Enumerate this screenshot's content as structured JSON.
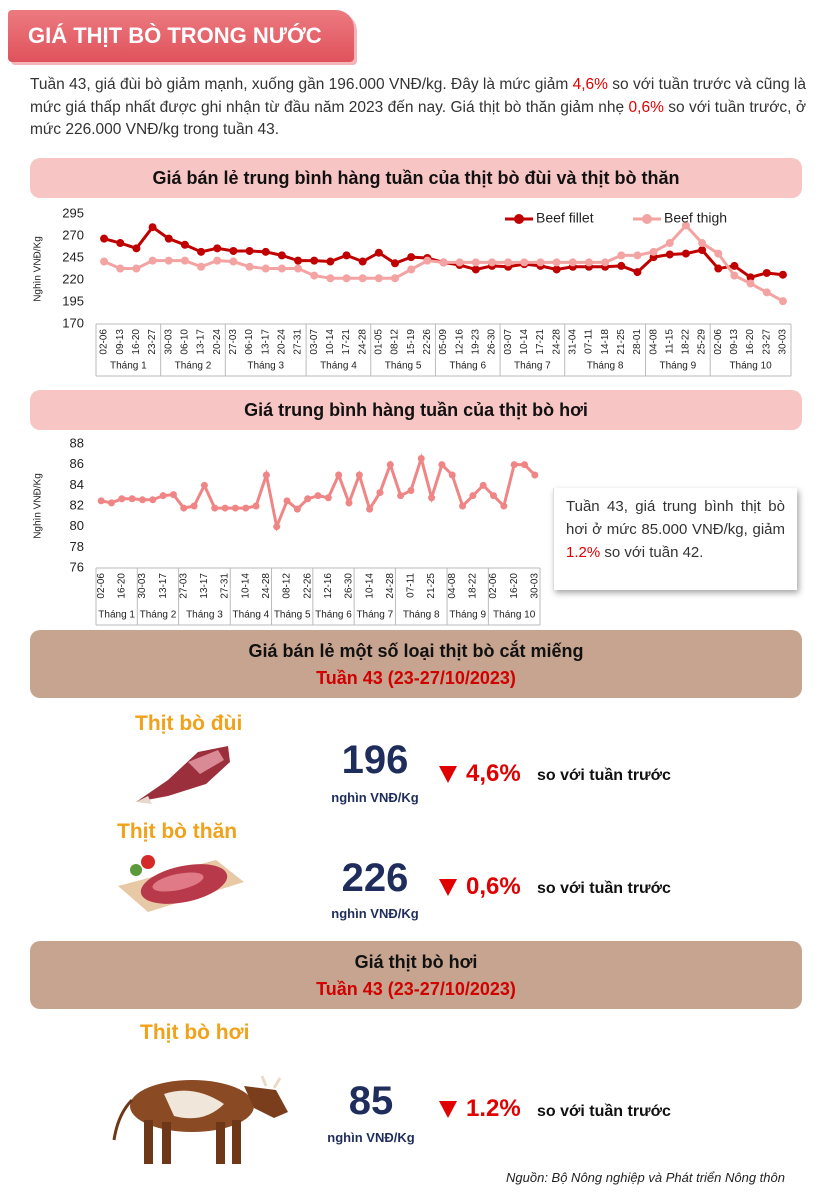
{
  "title": "GIÁ THỊT BÒ TRONG NƯỚC",
  "intro": [
    "Tuần 43, giá đùi bò giảm mạnh, xuống gần 196.000 VNĐ/kg. Đây là mức giảm ",
    "4,6%",
    " so với tuần trước và cũng là mức giá thấp nhất được ghi nhận từ đầu năm 2023 đến nay. Giá thịt bò thăn giảm nhẹ ",
    "0,6%",
    " so với tuần trước, ở mức 226.000 VNĐ/kg trong tuần 43."
  ],
  "chart_data": [
    {
      "type": "line",
      "title": "Giá bán lẻ trung bình hàng tuần của thịt bò đùi và thịt bò thăn",
      "y_label": "Nghìn VNĐ/Kg",
      "categories": [
        "02-06",
        "09-13",
        "16-20",
        "23-27",
        "30-03",
        "06-10",
        "13-17",
        "20-24",
        "27-03",
        "06-10",
        "13-17",
        "20-24",
        "27-31",
        "03-07",
        "10-14",
        "17-21",
        "24-28",
        "01-05",
        "08-12",
        "15-19",
        "22-26",
        "05-09",
        "12-16",
        "19-23",
        "26-30",
        "03-07",
        "10-14",
        "17-21",
        "24-28",
        "31-04",
        "07-11",
        "14-18",
        "21-25",
        "28-01",
        "04-08",
        "11-15",
        "18-22",
        "25-29",
        "02-06",
        "09-13",
        "16-20",
        "23-27",
        "30-03"
      ],
      "groups": [
        {
          "label": "Tháng 1",
          "count": 4
        },
        {
          "label": "Tháng 2",
          "count": 4
        },
        {
          "label": "Tháng 3",
          "count": 5
        },
        {
          "label": "Tháng 4",
          "count": 4
        },
        {
          "label": "Tháng 5",
          "count": 4
        },
        {
          "label": "Tháng 6",
          "count": 4
        },
        {
          "label": "Tháng 7",
          "count": 4
        },
        {
          "label": "Tháng 8",
          "count": 5
        },
        {
          "label": "Tháng 9",
          "count": 4
        },
        {
          "label": "Tháng 10",
          "count": 5
        }
      ],
      "series": [
        {
          "name": "Beef fillet",
          "color": "#c00000",
          "values": [
            267,
            262,
            256,
            280,
            267,
            260,
            252,
            256,
            253,
            253,
            252,
            248,
            242,
            242,
            241,
            248,
            241,
            251,
            239,
            246,
            245,
            240,
            237,
            232,
            236,
            235,
            238,
            236,
            232,
            235,
            235,
            235,
            236,
            229,
            246,
            249,
            250,
            254,
            233,
            236,
            223,
            228,
            226
          ]
        },
        {
          "name": "Beef thigh",
          "color": "#f4a3a3",
          "values": [
            241,
            233,
            233,
            242,
            242,
            242,
            235,
            242,
            241,
            235,
            233,
            233,
            233,
            225,
            222,
            222,
            222,
            222,
            222,
            232,
            242,
            240,
            240,
            240,
            240,
            240,
            240,
            240,
            240,
            240,
            240,
            240,
            248,
            248,
            252,
            262,
            282,
            262,
            250,
            225,
            216,
            206,
            196
          ]
        }
      ],
      "ylim": [
        170,
        295
      ],
      "yticks": [
        170,
        195,
        220,
        245,
        270,
        295
      ],
      "grid": false,
      "legend": "top-right"
    },
    {
      "type": "line",
      "title": "Giá trung bình hàng tuần của thịt bò hơi",
      "y_label": "Nghìn VNĐ/Kg",
      "categories": [
        "02-06",
        null,
        "16-20",
        null,
        "30-03",
        null,
        "13-17",
        null,
        "27-03",
        null,
        "13-17",
        null,
        "27-31",
        null,
        "10-14",
        null,
        "24-28",
        null,
        "08-12",
        null,
        "22-26",
        null,
        "12-16",
        null,
        "26-30",
        null,
        "10-14",
        null,
        "24-28",
        null,
        "07-11",
        null,
        "21-25",
        null,
        "04-08",
        null,
        "18-22",
        null,
        "02-06",
        null,
        "16-20",
        null,
        "30-03"
      ],
      "groups": [
        {
          "label": "Tháng 1",
          "count": 4
        },
        {
          "label": "Tháng 2",
          "count": 4
        },
        {
          "label": "Tháng 3",
          "count": 5
        },
        {
          "label": "Tháng 4",
          "count": 4
        },
        {
          "label": "Tháng 5",
          "count": 4
        },
        {
          "label": "Tháng 6",
          "count": 4
        },
        {
          "label": "Tháng 7",
          "count": 4
        },
        {
          "label": "Tháng 8",
          "count": 5
        },
        {
          "label": "Tháng 9",
          "count": 4
        },
        {
          "label": "Tháng 10",
          "count": 5
        }
      ],
      "values": [
        82.5,
        82.3,
        82.7,
        82.7,
        82.6,
        82.6,
        83.0,
        83.1,
        81.8,
        82.0,
        84.0,
        81.8,
        81.8,
        81.8,
        81.8,
        82.0,
        85.0,
        80.0,
        82.5,
        81.7,
        82.7,
        83.0,
        82.8,
        85.0,
        82.3,
        85.0,
        81.7,
        83.3,
        86.0,
        83.0,
        83.5,
        86.6,
        82.8,
        86.0,
        85.0,
        82.0,
        83.0,
        84.0,
        83.0,
        82.0,
        86.0,
        86.0,
        85.0
      ],
      "color": "#f08585",
      "ylim": [
        76,
        88
      ],
      "yticks": [
        76,
        78,
        80,
        82,
        84,
        86,
        88
      ],
      "grid": false
    }
  ],
  "note": [
    "Tuần 43, giá trung bình thịt bò hơi ở mức 85.000 VNĐ/kg, giảm ",
    "1.2%",
    " so với tuần 42."
  ],
  "sections": [
    {
      "title": "Giá bán lẻ một số loại thịt bò cắt miếng",
      "subtitle": "Tuần 43 (23-27/10/2023)",
      "items": [
        {
          "name": "Thịt bò đùi",
          "value": 196,
          "unit": "nghìn VNĐ/Kg",
          "change": "4,6%",
          "compare": "so với tuần trước"
        },
        {
          "name": "Thịt bò thăn",
          "value": 226,
          "unit": "nghìn VNĐ/Kg",
          "change": "0,6%",
          "compare": "so với tuần trước"
        }
      ]
    },
    {
      "title": "Giá thịt bò hơi",
      "subtitle": "Tuần 43 (23-27/10/2023)",
      "items": [
        {
          "name": "Thịt bò hơi",
          "value": 85,
          "unit": "nghìn VNĐ/Kg",
          "change": "1.2%",
          "compare": "so với tuần trước"
        }
      ]
    }
  ],
  "source": "Nguồn: Bộ Nông nghiệp và Phát triển Nông thôn"
}
